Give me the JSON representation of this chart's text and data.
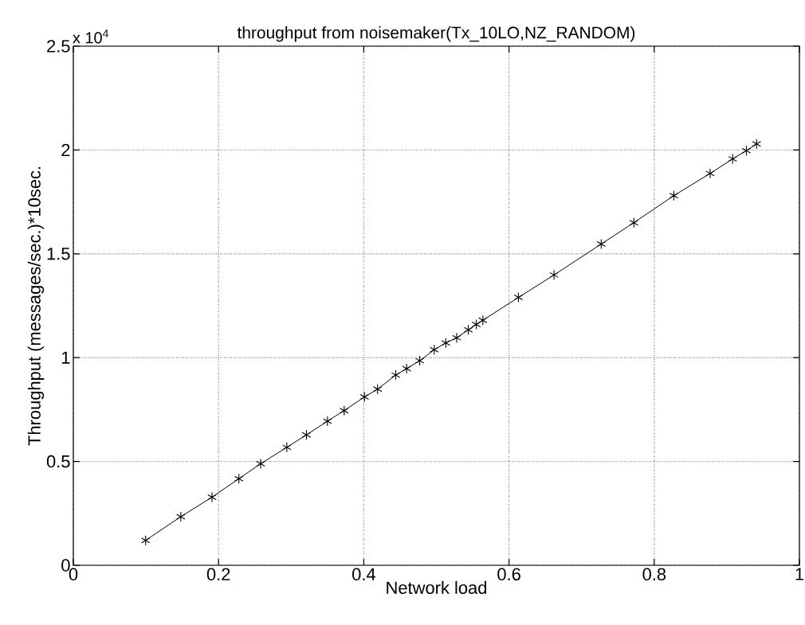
{
  "chart_data": {
    "type": "line",
    "title": "throughput from noisemaker(Tx_10LO,NZ_RANDOM)",
    "xlabel": "Network load",
    "ylabel": "Throughput (messages/sec.)*10sec.",
    "annotations": [
      "x 10$^{4}$"
    ],
    "x": [
      0.0996,
      0.148,
      0.191,
      0.228,
      0.258,
      0.294,
      0.321,
      0.35,
      0.373,
      0.401,
      0.419,
      0.444,
      0.459,
      0.477,
      0.497,
      0.513,
      0.528,
      0.544,
      0.555,
      0.564,
      0.613,
      0.662,
      0.727,
      0.772,
      0.827,
      0.877,
      0.908,
      0.927,
      0.941
    ],
    "series": [
      {
        "color": "#000000",
        "values": [
          0.12,
          0.234,
          0.328,
          0.417,
          0.489,
          0.568,
          0.628,
          0.694,
          0.745,
          0.811,
          0.848,
          0.916,
          0.947,
          0.985,
          1.038,
          1.071,
          1.096,
          1.134,
          1.16,
          1.18,
          1.29,
          1.398,
          1.547,
          1.65,
          1.78,
          1.887,
          1.957,
          1.997,
          2.029
        ]
      }
    ],
    "xlim": [
      0,
      1
    ],
    "ylim": [
      0,
      2.5
    ],
    "xticks": [
      0,
      0.2,
      0.4,
      0.6,
      0.8,
      1
    ],
    "yticks": [
      0,
      0.5,
      1,
      1.5,
      2,
      2.5
    ],
    "grid": true,
    "marker": "cross",
    "line_style": "solid"
  }
}
